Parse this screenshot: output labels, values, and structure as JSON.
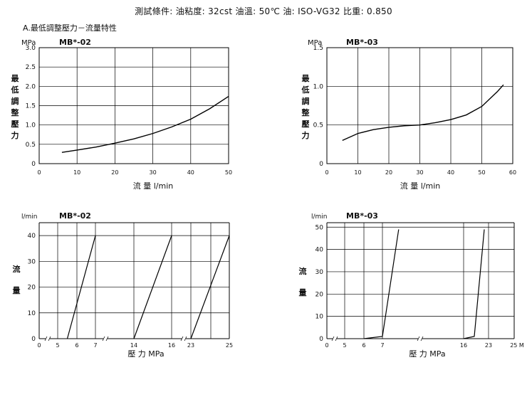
{
  "header": {
    "test_conditions": "測試條件: 油粘度: 32cst 油溫: 50℃ 油: ISO-VG32 比重: 0.850",
    "section_title": "A.最低調整壓力－流量特性"
  },
  "chart_data": [
    {
      "type": "line",
      "model": "MB*-02",
      "unit_label": "MPa",
      "ylabel_chars": [
        "最",
        "低",
        "調",
        "整",
        "壓",
        "力"
      ],
      "xlabel": "流 量 l/min",
      "xlim": [
        0,
        50
      ],
      "ylim": [
        0,
        3.0
      ],
      "xticks": [
        0,
        10,
        20,
        30,
        40,
        50
      ],
      "yticks": [
        0,
        0.5,
        1.0,
        1.5,
        2.0,
        2.5,
        3.0
      ],
      "ytick_labels": [
        "0",
        "0.5",
        "1.0",
        "1.5",
        "2.0",
        "2.5",
        "3.0"
      ],
      "grid": true,
      "series": [
        {
          "x": [
            6,
            10,
            15,
            20,
            25,
            30,
            35,
            40,
            45,
            50
          ],
          "y": [
            0.29,
            0.35,
            0.43,
            0.53,
            0.64,
            0.78,
            0.95,
            1.15,
            1.42,
            1.74
          ]
        }
      ]
    },
    {
      "type": "line",
      "model": "MB*-03",
      "unit_label": "MPa",
      "ylabel_chars": [
        "最",
        "低",
        "調",
        "整",
        "壓",
        "力"
      ],
      "xlabel": "流 量 l/min",
      "xlim": [
        0,
        60
      ],
      "ylim": [
        0,
        1.5
      ],
      "xticks": [
        0,
        10,
        20,
        30,
        40,
        50,
        60
      ],
      "yticks": [
        0,
        0.5,
        1.0,
        1.5
      ],
      "ytick_labels": [
        "0",
        "0.5",
        "1.0",
        "1.5"
      ],
      "grid": true,
      "series": [
        {
          "x": [
            5,
            10,
            15,
            20,
            25,
            30,
            35,
            40,
            45,
            50,
            55,
            57
          ],
          "y": [
            0.3,
            0.39,
            0.44,
            0.47,
            0.49,
            0.5,
            0.53,
            0.57,
            0.63,
            0.74,
            0.93,
            1.02
          ]
        }
      ]
    },
    {
      "type": "line",
      "model": "MB*-02",
      "unit_label": "l/min",
      "ylabel_chars": [
        "流",
        "量"
      ],
      "xlabel": "壓 力 MPa",
      "xtick_labels": [
        "0",
        "5",
        "6",
        "7",
        "14",
        "16",
        "23",
        "25"
      ],
      "ylim": [
        0,
        45
      ],
      "yticks": [
        0,
        10,
        20,
        30,
        40
      ],
      "ytick_labels": [
        "0",
        "10",
        "20",
        "30",
        "40"
      ],
      "grid": true,
      "series": [
        {
          "x": [
            5.5,
            7
          ],
          "y": [
            0,
            40
          ]
        },
        {
          "x": [
            14,
            16
          ],
          "y": [
            0,
            40
          ]
        },
        {
          "x": [
            23,
            25
          ],
          "y": [
            0,
            40
          ]
        }
      ]
    },
    {
      "type": "line",
      "model": "MB*-03",
      "unit_label": "l/min",
      "ylabel_chars": [
        "流",
        "量"
      ],
      "xlabel": "壓 力 MPa",
      "xtick_labels": [
        "0",
        "5",
        "6",
        "7",
        "16",
        "23",
        "25 M"
      ],
      "ylim": [
        0,
        52
      ],
      "yticks": [
        0,
        10,
        20,
        30,
        40,
        50
      ],
      "ytick_labels": [
        "0",
        "10",
        "20",
        "30",
        "40",
        "50"
      ],
      "grid": true,
      "series": [
        {
          "x": [
            6,
            7,
            8.8
          ],
          "y": [
            0,
            1,
            49
          ]
        },
        {
          "x": [
            16,
            19,
            21.8
          ],
          "y": [
            0,
            1,
            49
          ]
        }
      ]
    }
  ]
}
